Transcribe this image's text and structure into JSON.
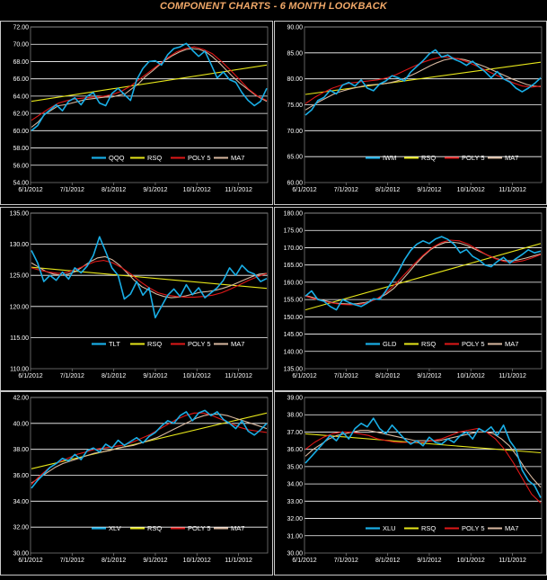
{
  "page": {
    "title": "COMPONENT CHARTS  -  6  MONTH LOOKBACK"
  },
  "legend_labels": [
    "RSQ",
    "POLY 5",
    "MA7"
  ],
  "colors": {
    "price": "#19aee6",
    "rsq": "#e6e61a",
    "poly5": "#e01818",
    "ma7": "#d8b8a0",
    "grid": "#ffffff",
    "plot_border": "#7a7a7a",
    "frame": "#c8c8c8",
    "text": "#ffffff",
    "title": "#f0a868"
  },
  "chart_data": [
    {
      "type": "line",
      "title": "",
      "ticker": "QQQ",
      "xlabel": "",
      "ylabel": "",
      "x_ticks": [
        "6/1/2012",
        "7/1/2012",
        "8/1/2012",
        "9/1/2012",
        "10/1/2012",
        "11/1/2012"
      ],
      "y_ticks": [
        "54.00",
        "56.00",
        "58.00",
        "60.00",
        "62.00",
        "64.00",
        "66.00",
        "68.00",
        "70.00",
        "72.00"
      ],
      "ylim": [
        54,
        72
      ],
      "grid": true,
      "legend": "bottom-right",
      "series": [
        {
          "name": "QQQ",
          "values": [
            60.0,
            60.6,
            61.8,
            62.4,
            63.0,
            62.3,
            63.4,
            63.8,
            63.0,
            64.0,
            64.4,
            63.2,
            62.9,
            64.3,
            64.9,
            64.2,
            63.5,
            65.9,
            67.2,
            68.0,
            68.1,
            67.6,
            68.8,
            69.5,
            69.7,
            70.1,
            69.3,
            68.6,
            69.2,
            67.7,
            66.1,
            66.8,
            65.9,
            65.6,
            64.4,
            63.5,
            62.9,
            63.4,
            64.9
          ]
        },
        {
          "name": "RSQ",
          "values": [
            63.4,
            67.6
          ]
        },
        {
          "name": "POLY 5",
          "values": [
            61.2,
            61.9,
            62.6,
            63.2,
            63.5,
            63.7,
            63.8,
            63.9,
            64.0,
            64.2,
            64.6,
            65.2,
            66.0,
            66.8,
            67.6,
            68.4,
            69.1,
            69.5,
            69.7,
            69.4,
            68.9,
            68.0,
            67.0,
            65.9,
            64.8,
            64.0,
            63.5
          ]
        },
        {
          "name": "MA7",
          "values": [
            60.4,
            61.0,
            61.9,
            62.4,
            62.9,
            63.0,
            63.2,
            63.4,
            63.6,
            63.7,
            63.8,
            63.9,
            63.9,
            64.1,
            64.3,
            64.9,
            65.5,
            66.3,
            66.9,
            67.6,
            68.2,
            68.7,
            69.1,
            69.4,
            69.5,
            69.4,
            69.1,
            68.5,
            67.8,
            67.0,
            66.2,
            65.5,
            64.9,
            64.3,
            63.8,
            63.4
          ]
        }
      ]
    },
    {
      "type": "line",
      "title": "",
      "ticker": "IWM",
      "xlabel": "",
      "ylabel": "",
      "x_ticks": [
        "6/1/2012",
        "7/1/2012",
        "8/1/2012",
        "9/1/2012",
        "10/1/2012",
        "11/1/2012"
      ],
      "y_ticks": [
        "60.00",
        "65.00",
        "70.00",
        "75.00",
        "80.00",
        "85.00",
        "90.00"
      ],
      "ylim": [
        60,
        90
      ],
      "grid": true,
      "legend": "bottom-right",
      "series": [
        {
          "name": "IWM",
          "values": [
            73.0,
            74.0,
            75.8,
            76.4,
            77.8,
            77.1,
            78.8,
            79.3,
            78.6,
            79.8,
            78.2,
            77.7,
            79.0,
            79.6,
            80.6,
            80.2,
            79.6,
            81.3,
            82.4,
            83.5,
            84.8,
            85.6,
            84.2,
            84.6,
            83.8,
            83.3,
            82.6,
            83.4,
            82.3,
            81.4,
            80.2,
            81.4,
            80.0,
            79.4,
            78.2,
            77.5,
            78.2,
            79.1,
            80.2
          ]
        },
        {
          "name": "RSQ",
          "values": [
            77.0,
            83.2
          ]
        },
        {
          "name": "POLY 5",
          "values": [
            75.2,
            76.4,
            77.4,
            78.2,
            78.8,
            79.2,
            79.4,
            79.6,
            79.8,
            80.2,
            80.8,
            81.6,
            82.4,
            83.2,
            83.8,
            84.2,
            84.2,
            83.8,
            83.2,
            82.4,
            81.6,
            80.8,
            80.0,
            79.2,
            78.6,
            78.4,
            78.6
          ]
        },
        {
          "name": "MA7",
          "values": [
            74.0,
            74.8,
            75.6,
            76.3,
            77.0,
            77.5,
            77.9,
            78.2,
            78.5,
            78.8,
            78.9,
            79.0,
            79.2,
            79.5,
            79.9,
            80.5,
            81.1,
            81.8,
            82.5,
            83.1,
            83.6,
            83.9,
            83.9,
            83.7,
            83.3,
            82.8,
            82.3,
            81.7,
            81.1,
            80.5,
            79.9,
            79.4,
            78.9,
            78.6,
            78.5
          ]
        }
      ]
    },
    {
      "type": "line",
      "title": "",
      "ticker": "TLT",
      "xlabel": "",
      "ylabel": "",
      "x_ticks": [
        "6/1/2012",
        "7/1/2012",
        "8/1/2012",
        "9/1/2012",
        "10/1/2012",
        "11/1/2012"
      ],
      "y_ticks": [
        "110.00",
        "115.00",
        "120.00",
        "125.00",
        "130.00",
        "135.00"
      ],
      "ylim": [
        110,
        135
      ],
      "grid": true,
      "legend": "bottom-right",
      "series": [
        {
          "name": "TLT",
          "values": [
            129.0,
            127.0,
            124.0,
            125.0,
            124.2,
            125.5,
            124.4,
            126.2,
            125.4,
            126.5,
            128.2,
            131.2,
            128.8,
            126.2,
            125.0,
            121.2,
            122.0,
            124.0,
            121.8,
            123.0,
            118.2,
            120.0,
            121.8,
            122.8,
            121.6,
            123.5,
            121.9,
            123.0,
            121.4,
            122.2,
            123.0,
            124.2,
            126.2,
            125.0,
            126.6,
            125.6,
            125.2,
            124.0,
            124.5
          ]
        },
        {
          "name": "RSQ",
          "values": [
            126.3,
            122.9
          ]
        },
        {
          "name": "POLY 5",
          "values": [
            126.2,
            125.8,
            125.5,
            125.3,
            125.5,
            126.0,
            126.6,
            127.2,
            127.4,
            127.0,
            126.2,
            125.2,
            124.0,
            123.0,
            122.2,
            121.8,
            121.6,
            121.5,
            121.5,
            121.6,
            121.8,
            122.2,
            122.8,
            123.5,
            124.2,
            124.8,
            125.3
          ]
        },
        {
          "name": "MA7",
          "values": [
            127.0,
            126.3,
            125.6,
            125.2,
            125.0,
            125.2,
            125.6,
            126.4,
            127.2,
            127.8,
            128.0,
            127.5,
            126.6,
            125.4,
            124.2,
            123.2,
            122.6,
            122.0,
            121.6,
            121.4,
            121.5,
            121.7,
            122.0,
            122.3,
            122.4,
            122.6,
            122.9,
            123.3,
            123.8,
            124.3,
            124.8,
            125.2,
            125.3
          ]
        }
      ]
    },
    {
      "type": "line",
      "title": "",
      "ticker": "GLD",
      "xlabel": "",
      "ylabel": "",
      "x_ticks": [
        "6/1/2012",
        "7/1/2012",
        "8/1/2012",
        "9/1/2012",
        "10/1/2012",
        "11/1/2012"
      ],
      "y_ticks": [
        "135.00",
        "140.00",
        "145.00",
        "150.00",
        "155.00",
        "160.00",
        "165.00",
        "170.00",
        "175.00",
        "180.00"
      ],
      "ylim": [
        135,
        180
      ],
      "grid": true,
      "legend": "bottom-right",
      "series": [
        {
          "name": "GLD",
          "values": [
            156.0,
            157.5,
            155.0,
            154.5,
            153.0,
            152.0,
            155.0,
            154.2,
            153.5,
            153.0,
            154.0,
            155.2,
            155.0,
            157.5,
            160.2,
            163.0,
            166.5,
            169.2,
            171.0,
            172.0,
            171.2,
            172.5,
            173.2,
            172.4,
            171.0,
            168.5,
            169.5,
            167.5,
            166.5,
            165.0,
            164.5,
            166.0,
            167.2,
            165.5,
            166.8,
            168.0,
            169.4,
            168.5,
            169.0
          ]
        },
        {
          "name": "RSQ",
          "values": [
            152.0,
            171.2
          ]
        },
        {
          "name": "POLY 5",
          "values": [
            156.0,
            155.2,
            154.5,
            154.0,
            153.6,
            153.5,
            153.6,
            154.2,
            155.4,
            157.2,
            159.6,
            162.4,
            165.2,
            167.8,
            170.0,
            171.5,
            172.2,
            172.0,
            171.0,
            169.5,
            168.0,
            166.8,
            166.0,
            165.8,
            166.2,
            167.0,
            168.0
          ]
        },
        {
          "name": "MA7",
          "values": [
            156.2,
            155.6,
            155.0,
            154.5,
            154.0,
            153.8,
            153.7,
            153.8,
            154.1,
            154.6,
            155.4,
            156.6,
            158.2,
            160.3,
            162.7,
            165.2,
            167.5,
            169.4,
            170.7,
            171.5,
            171.6,
            171.3,
            170.6,
            169.6,
            168.6,
            167.6,
            166.8,
            166.3,
            166.2,
            166.5,
            167.0,
            167.6,
            168.2
          ]
        }
      ]
    },
    {
      "type": "line",
      "title": "",
      "ticker": "XLV",
      "xlabel": "",
      "ylabel": "",
      "x_ticks": [
        "6/1/2012",
        "7/1/2012",
        "8/1/2012",
        "9/1/2012",
        "10/1/2012",
        "11/1/2012"
      ],
      "y_ticks": [
        "30.00",
        "32.00",
        "34.00",
        "36.00",
        "38.00",
        "40.00",
        "42.00"
      ],
      "ylim": [
        30,
        42
      ],
      "grid": true,
      "legend": "bottom-right",
      "series": [
        {
          "name": "XLV",
          "values": [
            35.0,
            35.6,
            36.1,
            36.6,
            36.9,
            37.3,
            37.1,
            37.6,
            37.2,
            37.9,
            38.1,
            37.8,
            38.4,
            38.1,
            38.7,
            38.3,
            38.6,
            38.9,
            38.5,
            39.0,
            39.3,
            39.8,
            40.2,
            40.0,
            40.6,
            40.9,
            40.2,
            40.8,
            41.0,
            40.6,
            40.9,
            40.3,
            40.0,
            39.6,
            40.2,
            39.4,
            39.1,
            39.5,
            40.0
          ]
        },
        {
          "name": "RSQ",
          "values": [
            36.5,
            40.8
          ]
        },
        {
          "name": "POLY 5",
          "values": [
            35.3,
            36.0,
            36.6,
            37.0,
            37.3,
            37.6,
            37.8,
            38.0,
            38.1,
            38.2,
            38.3,
            38.5,
            38.8,
            39.1,
            39.5,
            39.9,
            40.3,
            40.6,
            40.8,
            40.8,
            40.6,
            40.3,
            40.0,
            39.7,
            39.5,
            39.4,
            39.3
          ]
        },
        {
          "name": "MA7",
          "values": [
            35.4,
            35.8,
            36.2,
            36.6,
            36.9,
            37.1,
            37.3,
            37.5,
            37.7,
            37.8,
            37.9,
            38.1,
            38.2,
            38.3,
            38.5,
            38.7,
            38.9,
            39.2,
            39.5,
            39.8,
            40.1,
            40.4,
            40.6,
            40.7,
            40.7,
            40.6,
            40.4,
            40.2,
            40.0,
            39.8,
            39.6
          ]
        }
      ]
    },
    {
      "type": "line",
      "title": "",
      "ticker": "XLU",
      "xlabel": "",
      "ylabel": "",
      "x_ticks": [
        "6/1/2012",
        "7/1/2012",
        "8/1/2012",
        "9/1/2012",
        "10/1/2012",
        "11/1/2012"
      ],
      "y_ticks": [
        "30.00",
        "31.00",
        "32.00",
        "33.00",
        "34.00",
        "35.00",
        "36.00",
        "37.00",
        "38.00",
        "39.00"
      ],
      "ylim": [
        30,
        39
      ],
      "grid": true,
      "legend": "bottom-right",
      "series": [
        {
          "name": "XLU",
          "values": [
            35.2,
            35.6,
            36.0,
            36.4,
            36.8,
            36.5,
            37.0,
            36.6,
            37.2,
            37.5,
            37.3,
            37.8,
            37.2,
            36.9,
            37.4,
            37.0,
            36.6,
            36.3,
            36.5,
            36.2,
            36.7,
            36.4,
            36.3,
            36.6,
            36.4,
            36.8,
            37.0,
            36.6,
            37.2,
            37.0,
            37.3,
            36.8,
            37.4,
            36.5,
            36.0,
            34.8,
            34.2,
            33.9,
            33.2
          ]
        },
        {
          "name": "RSQ",
          "values": [
            36.9,
            35.8
          ]
        },
        {
          "name": "POLY 5",
          "values": [
            36.0,
            36.4,
            36.7,
            36.9,
            37.0,
            37.0,
            36.9,
            36.8,
            36.6,
            36.5,
            36.4,
            36.4,
            36.4,
            36.4,
            36.5,
            36.6,
            36.8,
            37.0,
            37.1,
            37.2,
            37.0,
            36.6,
            36.0,
            35.2,
            34.3,
            33.4,
            32.9
          ]
        },
        {
          "name": "MA7",
          "values": [
            35.6,
            36.0,
            36.3,
            36.6,
            36.8,
            36.9,
            37.0,
            37.1,
            37.1,
            37.0,
            36.9,
            36.8,
            36.7,
            36.6,
            36.5,
            36.5,
            36.5,
            36.5,
            36.6,
            36.7,
            36.8,
            36.9,
            37.0,
            37.0,
            36.9,
            36.6,
            36.2,
            35.6,
            34.9,
            34.3,
            33.8
          ]
        }
      ]
    }
  ]
}
